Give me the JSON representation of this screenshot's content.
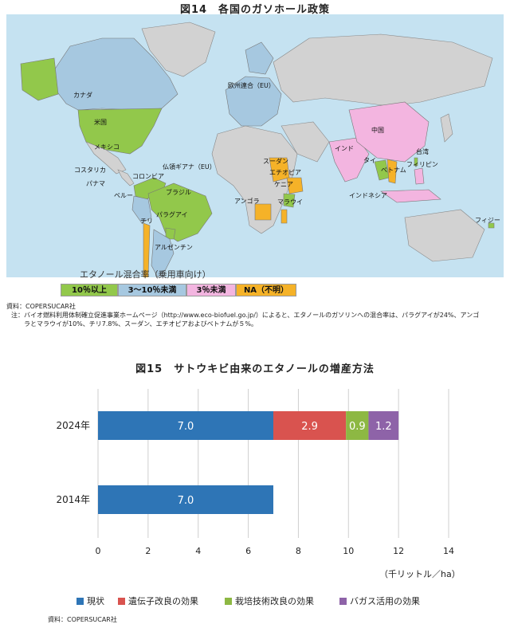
{
  "figure14": {
    "title": "図14　各国のガソホール政策",
    "legend_caption": "エタノール混合率（乗用車向け）",
    "legend": [
      {
        "label": "10％以上",
        "color": "#92c84b"
      },
      {
        "label": "3～10％未満",
        "color": "#a6c8e0"
      },
      {
        "label": "3％未満",
        "color": "#f3b5e0"
      },
      {
        "label": "NA（不明）",
        "color": "#f5b228"
      }
    ],
    "country_labels": [
      "カナダ",
      "欧州連合（EU）",
      "米国",
      "メキシコ",
      "コスタリカ",
      "パナマ",
      "仏領ギアナ（EU）",
      "コロンビア",
      "ベルー",
      "ブラジル",
      "チリ",
      "パラグアイ",
      "アルゼンチン",
      "スーダン",
      "エチオピア",
      "ケニア",
      "アンゴラ",
      "マラウイ",
      "中国",
      "インド",
      "台湾",
      "タイ",
      "ベトナム",
      "フィリピン",
      "インドネシア",
      "フィジー"
    ],
    "source": "資料：COPERSUCAR社",
    "note_line1": "注：バイオ燃料利用体制確立促進事業ホームページ（http://www.eco-biofuel.go.jp/）によると、エタノールのガソリンへの混合率は、パラグアイが24%、アンゴ",
    "note_line2": "ラとマラウイが10%、チリ7.8%、スーダン、エチオピアおよびベトナムが５%。"
  },
  "figure15": {
    "title": "図15　サトウキビ由来のエタノールの増産方法",
    "unit_label": "（千リットル／ha）",
    "source": "資料：COPERSUCAR社"
  },
  "chart_data": {
    "type": "bar",
    "orientation": "horizontal",
    "stacked": true,
    "title": "図15　サトウキビ由来のエタノールの増産方法",
    "categories": [
      "2024年",
      "2014年"
    ],
    "series": [
      {
        "name": "現状",
        "values": [
          7.0,
          7.0
        ],
        "color": "#2e75b6"
      },
      {
        "name": "遺伝子改良の効果",
        "values": [
          2.9,
          null
        ],
        "color": "#d9534f"
      },
      {
        "name": "栽培技術改良の効果",
        "values": [
          0.9,
          null
        ],
        "color": "#8db843"
      },
      {
        "name": "バガス活用の効果",
        "values": [
          1.2,
          null
        ],
        "color": "#8e63a8"
      }
    ],
    "xlim": [
      0,
      14
    ],
    "xticks": [
      0,
      2,
      4,
      6,
      8,
      10,
      12,
      14
    ],
    "xlabel": "（千リットル／ha）",
    "grid": true,
    "legend_position": "bottom"
  }
}
